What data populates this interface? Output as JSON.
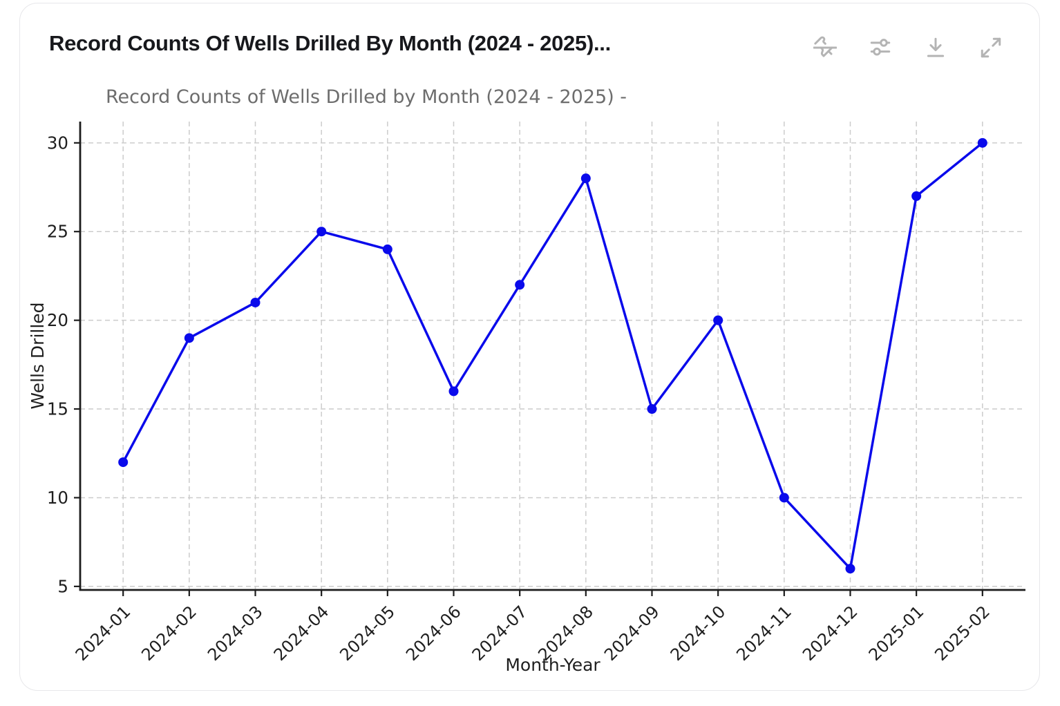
{
  "header": {
    "title": "Record Counts Of Wells Drilled By Month (2024 - 2025)...",
    "icons": [
      "unpin-icon",
      "filter-sliders-icon",
      "download-icon",
      "expand-icon"
    ]
  },
  "chart_data": {
    "type": "line",
    "title": "Record Counts of Wells Drilled by Month (2024 - 2025) -",
    "xlabel": "Month-Year",
    "ylabel": "Wells Drilled",
    "categories": [
      "2024-01",
      "2024-02",
      "2024-03",
      "2024-04",
      "2024-05",
      "2024-06",
      "2024-07",
      "2024-08",
      "2024-09",
      "2024-10",
      "2024-11",
      "2024-12",
      "2025-01",
      "2025-02"
    ],
    "values": [
      12,
      19,
      21,
      25,
      24,
      16,
      22,
      28,
      15,
      20,
      10,
      6,
      27,
      30
    ],
    "yticks": [
      5,
      10,
      15,
      20,
      25,
      30
    ],
    "ylim": [
      4.8,
      31.2
    ],
    "grid": true,
    "legend": "none",
    "line_color": "#0a0aeb",
    "marker": "circle",
    "grid_color": "#cccccc",
    "spine_color": "#1c1c1c"
  }
}
